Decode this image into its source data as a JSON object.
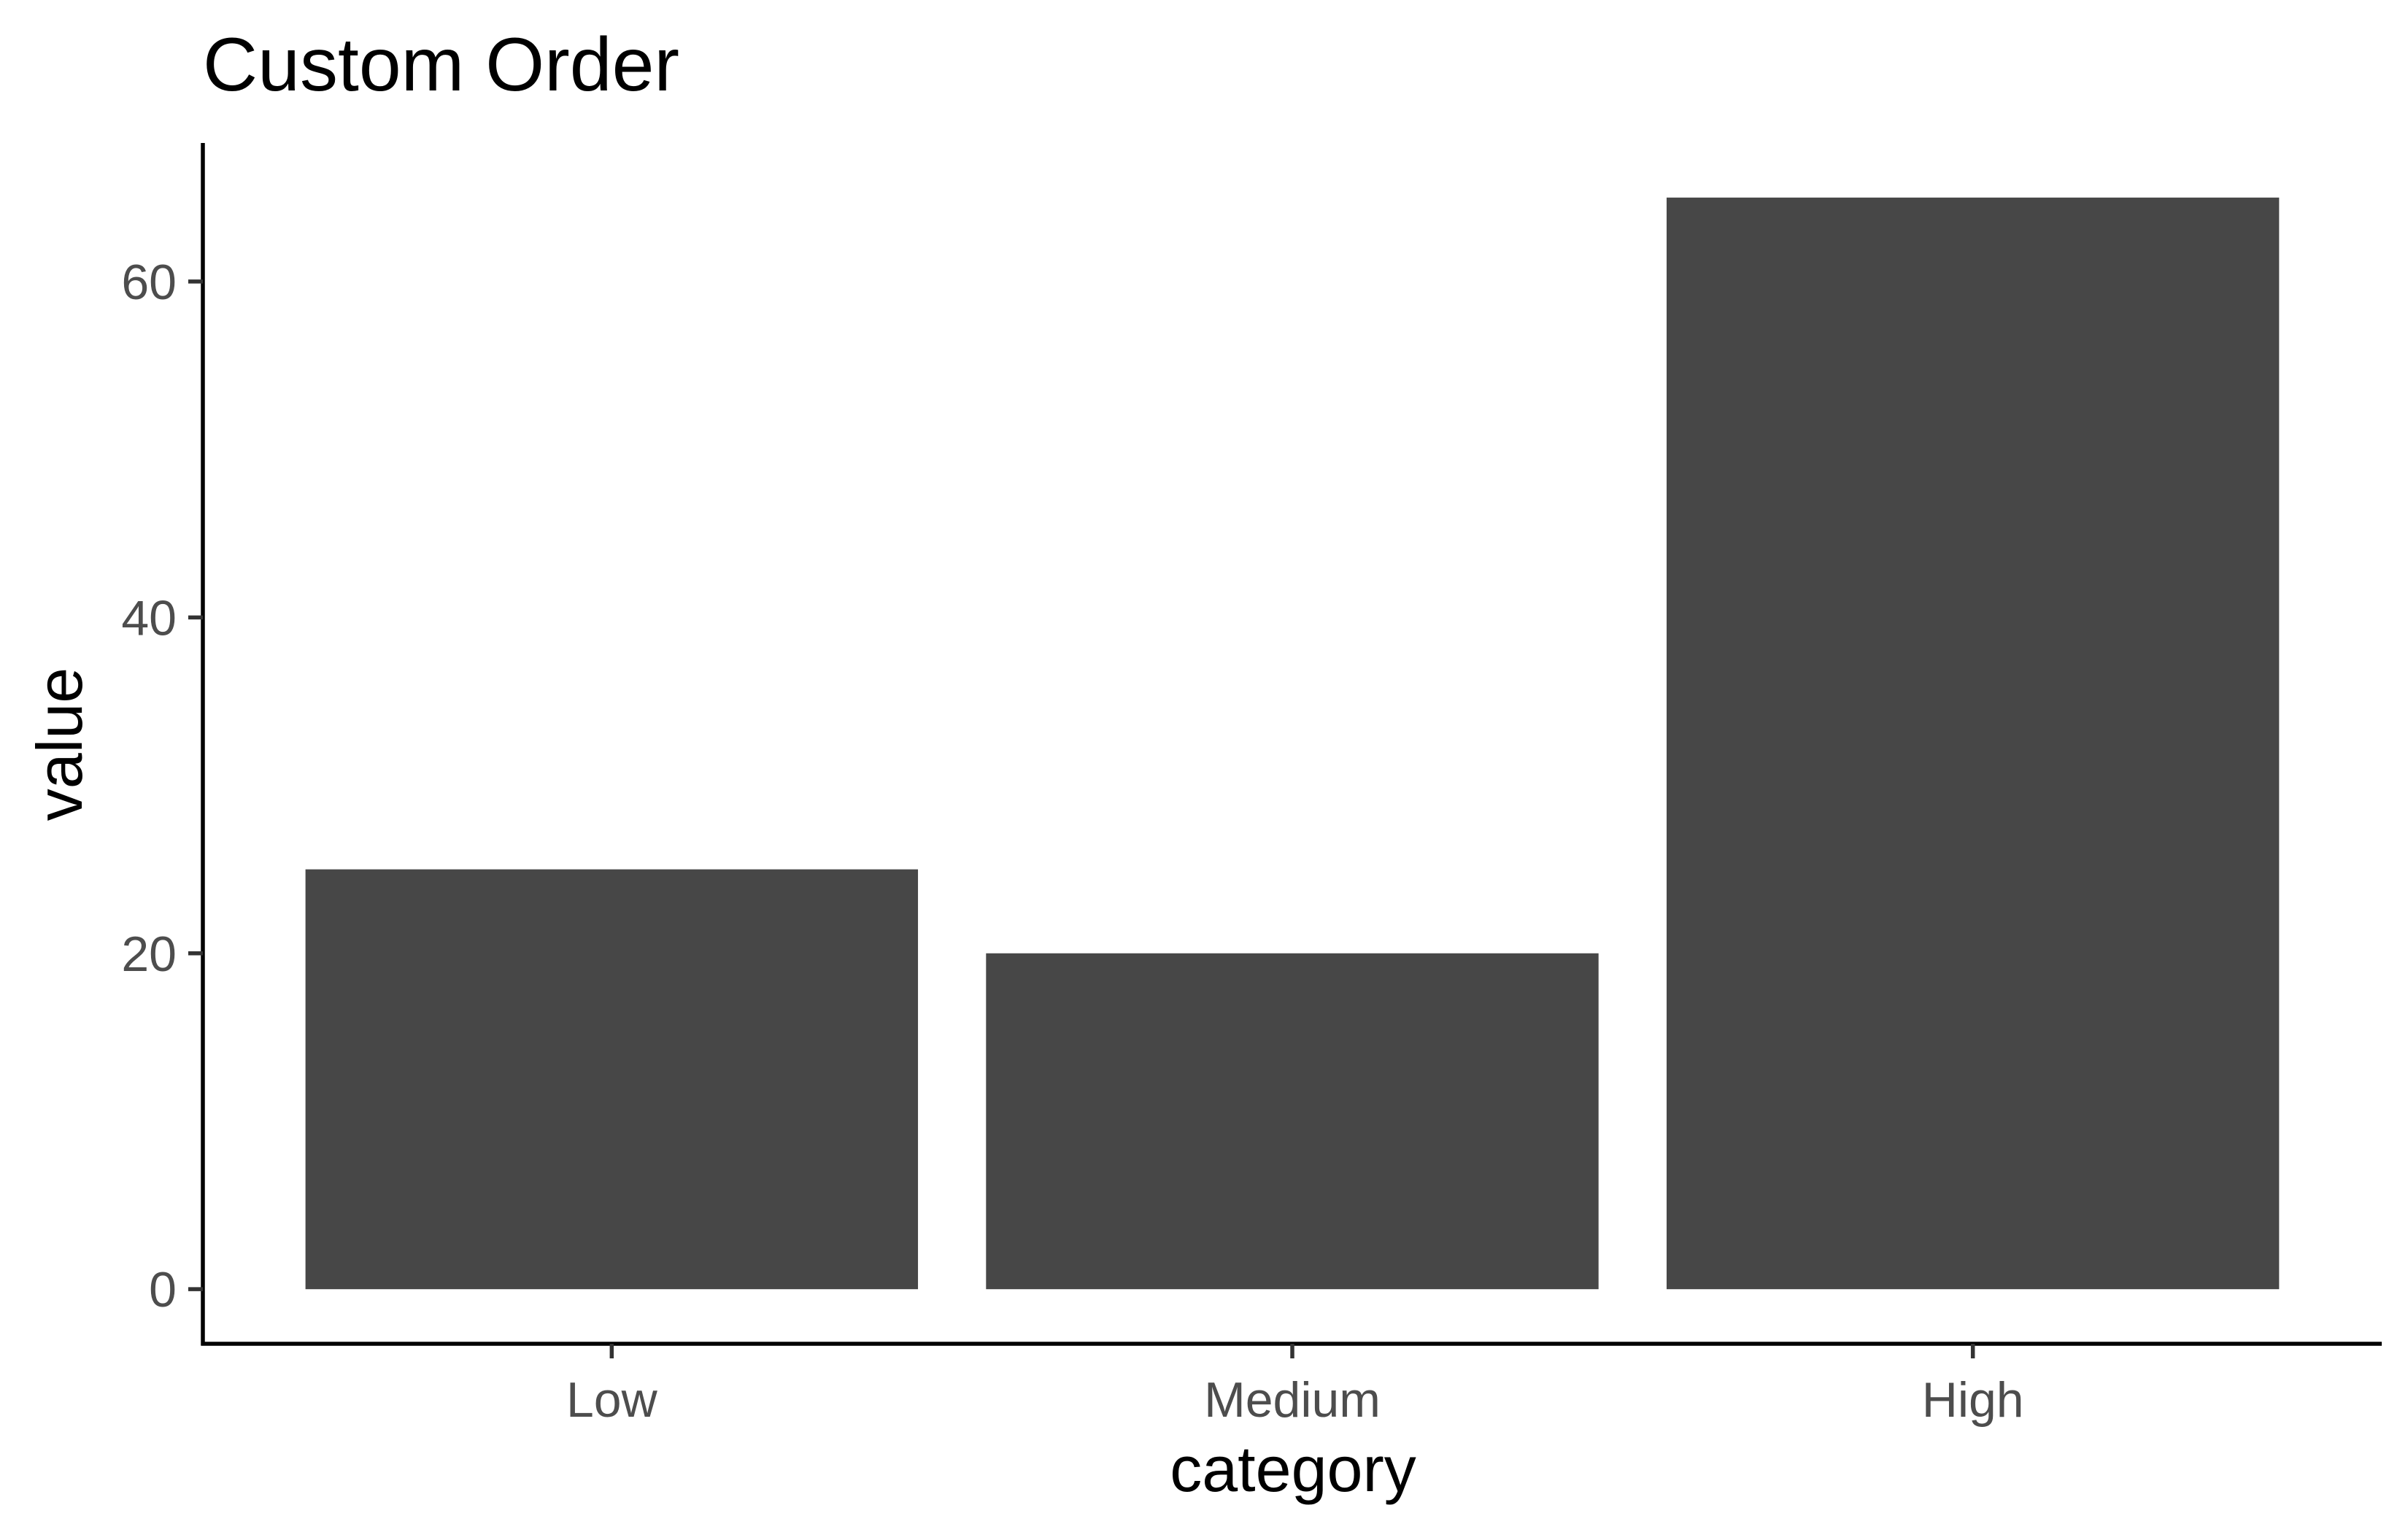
{
  "chart_data": {
    "type": "bar",
    "title": "Custom Order",
    "xlabel": "category",
    "ylabel": "value",
    "categories": [
      "Low",
      "Medium",
      "High"
    ],
    "values": [
      25,
      20,
      65
    ],
    "ylim": [
      -3.25,
      68.25
    ],
    "yticks": [
      0,
      20,
      40,
      60
    ],
    "grid": false,
    "legend": "none",
    "colors": {
      "bar": "#474747",
      "axis": "#000000",
      "tick_label": "#4d4d4d",
      "background": "#ffffff"
    }
  }
}
